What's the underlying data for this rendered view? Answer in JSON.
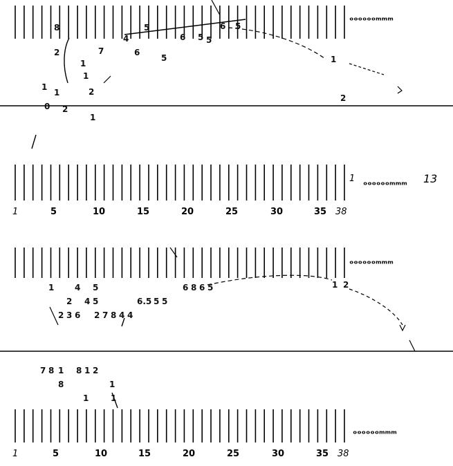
{
  "colors": {
    "ink": "#000000",
    "paper": "#ffffff"
  },
  "panels": [
    {
      "id": "top",
      "strip_glyphs": "ᵒᵒᵒᵒᵒᵒᵐᵐᵐ",
      "side_labels": [
        "1",
        "13"
      ],
      "bottom_scale": [
        "1",
        "5",
        "10",
        "15",
        "20",
        "25",
        "30",
        "35",
        "38"
      ],
      "marks": [
        "8",
        "2",
        "1",
        "5",
        "6",
        "5",
        "4",
        "7",
        "1",
        "6",
        "5",
        "6",
        "5",
        "5",
        "1",
        "2",
        "1",
        "2",
        "1",
        "0",
        "2",
        "1"
      ]
    },
    {
      "id": "bottom",
      "strip_glyphs": "ᵒᵒᵒᵒᵒᵒᵐᵐᵐ",
      "bottom_scale": [
        "1",
        "5",
        "10",
        "15",
        "20",
        "25",
        "30",
        "35",
        "38"
      ],
      "marks": [
        "1",
        "4",
        "5",
        "2",
        "4",
        "5",
        "2",
        "3",
        "6",
        "2",
        "7",
        "8",
        "4",
        "4",
        "6.5",
        "5",
        "5",
        "6",
        "8",
        "6",
        "5",
        "1",
        "2",
        "7",
        "8",
        "1",
        "8",
        "1",
        "2",
        "8",
        "1",
        "1",
        "1"
      ]
    }
  ]
}
